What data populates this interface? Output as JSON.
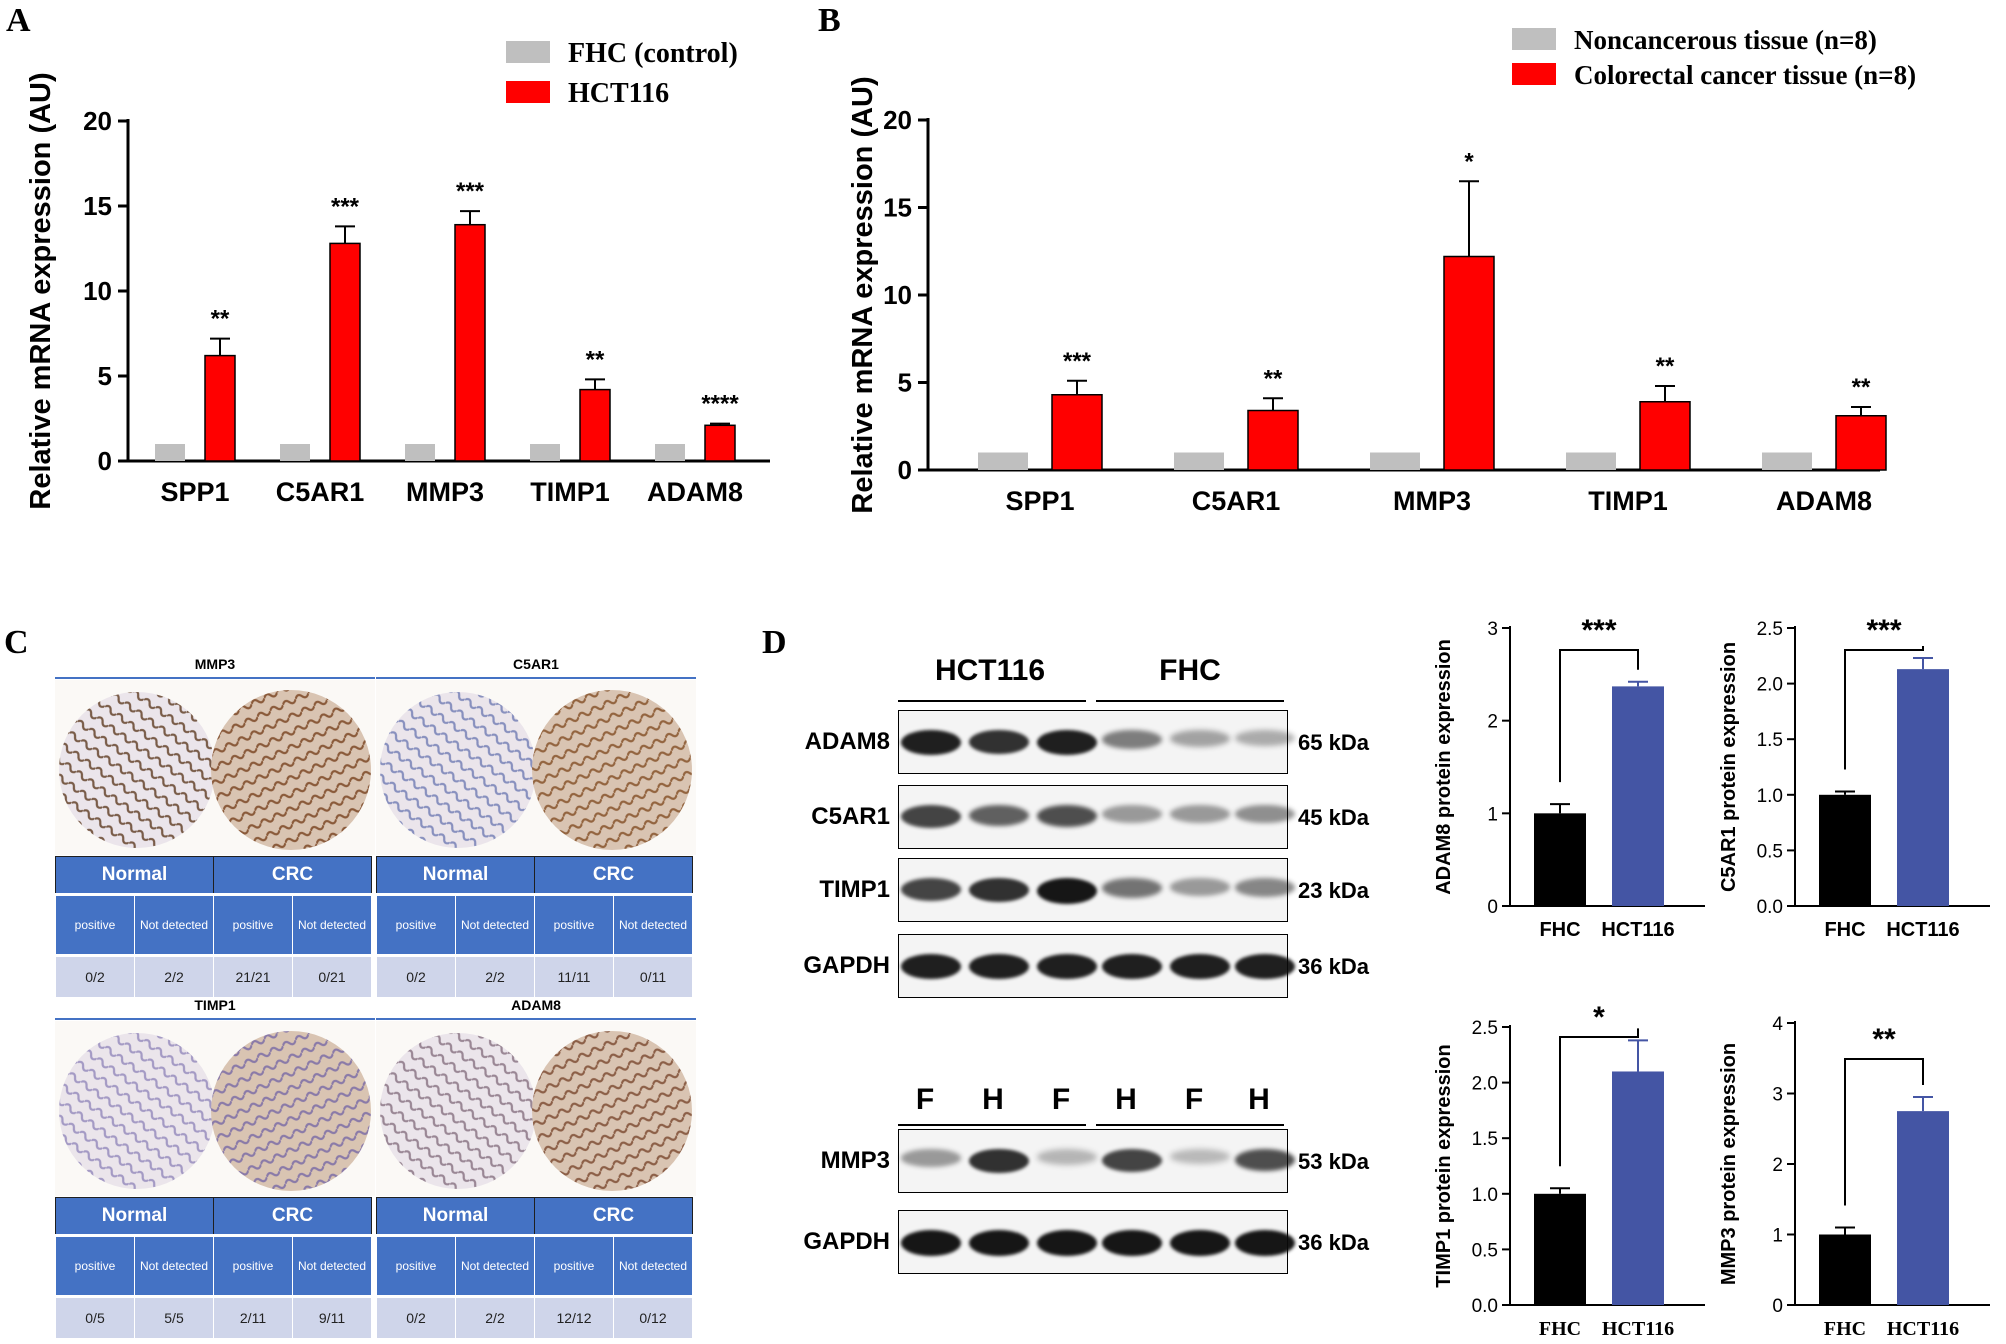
{
  "panels": {
    "A": "A",
    "B": "B",
    "C": "C",
    "D": "D"
  },
  "chart_data": [
    {
      "id": "A",
      "type": "bar",
      "title": "",
      "xlabel": "",
      "ylabel": "Relative mRNA expression (AU)",
      "ylim": [
        0,
        20
      ],
      "yticks": [
        0,
        5,
        10,
        15,
        20
      ],
      "categories": [
        "SPP1",
        "C5AR1",
        "MMP3",
        "TIMP1",
        "ADAM8"
      ],
      "series": [
        {
          "name": "FHC (control)",
          "color": "#bfbfbf",
          "values": [
            1,
            1,
            1,
            1,
            1
          ],
          "errors": [
            0,
            0,
            0,
            0,
            0
          ]
        },
        {
          "name": "HCT116",
          "color": "#ff0000",
          "values": [
            6.2,
            12.8,
            13.9,
            4.2,
            2.1
          ],
          "errors": [
            1.0,
            1.0,
            0.8,
            0.6,
            0.1
          ]
        }
      ],
      "significance": [
        "**",
        "***",
        "***",
        "**",
        "****"
      ],
      "legend_position": "top-right"
    },
    {
      "id": "B",
      "type": "bar",
      "title": "",
      "xlabel": "",
      "ylabel": "Relative mRNA expression (AU)",
      "ylim": [
        0,
        20
      ],
      "yticks": [
        0,
        5,
        10,
        15,
        20
      ],
      "categories": [
        "SPP1",
        "C5AR1",
        "MMP3",
        "TIMP1",
        "ADAM8"
      ],
      "series": [
        {
          "name": "Noncancerous tissue (n=8)",
          "color": "#bfbfbf",
          "values": [
            1,
            1,
            1,
            1,
            1
          ],
          "errors": [
            0,
            0,
            0,
            0,
            0
          ]
        },
        {
          "name": "Colorectal cancer tissue (n=8)",
          "color": "#ff0000",
          "values": [
            4.3,
            3.4,
            12.2,
            3.9,
            3.1
          ],
          "errors": [
            0.8,
            0.7,
            4.3,
            0.9,
            0.5
          ]
        }
      ],
      "significance": [
        "***",
        "**",
        "*",
        "**",
        "**"
      ],
      "legend_position": "top-right"
    },
    {
      "id": "D-ADAM8",
      "type": "bar",
      "ylabel": "ADAM8 protein expression",
      "ylim": [
        0,
        3
      ],
      "yticks": [
        "0",
        "1",
        "2",
        "3"
      ],
      "categories": [
        "FHC",
        "HCT116"
      ],
      "values": [
        1.0,
        2.37
      ],
      "errors": [
        0.1,
        0.05
      ],
      "colors": [
        "#000000",
        "#4455a4"
      ],
      "significance": "***"
    },
    {
      "id": "D-C5AR1",
      "type": "bar",
      "ylabel": "C5AR1 protein expression",
      "ylim": [
        0,
        2.5
      ],
      "yticks": [
        "0.0",
        "0.5",
        "1.0",
        "1.5",
        "2.0",
        "2.5"
      ],
      "categories": [
        "FHC",
        "HCT116"
      ],
      "values": [
        1.0,
        2.13
      ],
      "errors": [
        0.03,
        0.1
      ],
      "colors": [
        "#000000",
        "#4455a4"
      ],
      "significance": "***"
    },
    {
      "id": "D-TIMP1",
      "type": "bar",
      "ylabel": "TIMP1 protein expression",
      "ylim": [
        0,
        2.5
      ],
      "yticks": [
        "0.0",
        "0.5",
        "1.0",
        "1.5",
        "2.0",
        "2.5"
      ],
      "categories": [
        "FHC",
        "HCT116"
      ],
      "values": [
        1.0,
        2.1
      ],
      "errors": [
        0.05,
        0.28
      ],
      "colors": [
        "#000000",
        "#4455a4"
      ],
      "significance": "*"
    },
    {
      "id": "D-MMP3",
      "type": "bar",
      "ylabel": "MMP3 protein expression",
      "ylim": [
        0,
        4
      ],
      "yticks": [
        "0",
        "1",
        "2",
        "3",
        "4"
      ],
      "categories": [
        "FHC",
        "HCT116"
      ],
      "values": [
        1.0,
        2.75
      ],
      "errors": [
        0.1,
        0.2
      ],
      "colors": [
        "#000000",
        "#4455a4"
      ],
      "significance": "**"
    }
  ],
  "ihc": [
    {
      "gene": "MMP3",
      "normal_label": "Normal",
      "crc_label": "CRC",
      "sub": [
        "positive",
        "Not detected",
        "positive",
        "Not detected"
      ],
      "values": [
        "0/2",
        "2/2",
        "21/21",
        "0/21"
      ],
      "normal_stain": "#6b4a35",
      "crc_stain": "#8a5a3a"
    },
    {
      "gene": "C5AR1",
      "normal_label": "Normal",
      "crc_label": "CRC",
      "sub": [
        "positive",
        "Not detected",
        "positive",
        "Not detected"
      ],
      "values": [
        "0/2",
        "2/2",
        "11/11",
        "0/11"
      ],
      "normal_stain": "#7b84b8",
      "crc_stain": "#93643f"
    },
    {
      "gene": "TIMP1",
      "normal_label": "Normal",
      "crc_label": "CRC",
      "sub": [
        "positive",
        "Not detected",
        "positive",
        "Not detected"
      ],
      "values": [
        "0/5",
        "5/5",
        "2/11",
        "9/11"
      ],
      "normal_stain": "#9a8fbf",
      "crc_stain": "#8a7aa8"
    },
    {
      "gene": "ADAM8",
      "normal_label": "Normal",
      "crc_label": "CRC",
      "sub": [
        "positive",
        "Not detected",
        "positive",
        "Not detected"
      ],
      "values": [
        "0/2",
        "2/2",
        "12/12",
        "0/12"
      ],
      "normal_stain": "#8f7a8a",
      "crc_stain": "#8c5f47"
    }
  ],
  "western": {
    "group_labels": [
      "HCT116",
      "FHC"
    ],
    "lane_letters": [
      "F",
      "H",
      "F",
      "H",
      "F",
      "H"
    ],
    "blots": [
      {
        "name": "ADAM8",
        "kda": "65 kDa",
        "intensity": [
          0.95,
          0.85,
          0.95,
          0.45,
          0.25,
          0.2
        ]
      },
      {
        "name": "C5AR1",
        "kda": "45 kDa",
        "intensity": [
          0.75,
          0.6,
          0.7,
          0.3,
          0.3,
          0.35
        ]
      },
      {
        "name": "TIMP1",
        "kda": "23 kDa",
        "intensity": [
          0.75,
          0.85,
          1.0,
          0.5,
          0.3,
          0.4
        ]
      },
      {
        "name": "GAPDH",
        "kda": "36 kDa",
        "intensity": [
          0.95,
          0.95,
          0.95,
          0.95,
          0.95,
          0.95
        ]
      },
      {
        "name": "MMP3",
        "kda": "53 kDa",
        "intensity": [
          0.3,
          0.85,
          0.15,
          0.75,
          0.12,
          0.7
        ]
      },
      {
        "name": "GAPDH",
        "kda": "36 kDa",
        "intensity": [
          1.0,
          1.0,
          1.0,
          1.0,
          1.0,
          1.0
        ]
      }
    ]
  }
}
